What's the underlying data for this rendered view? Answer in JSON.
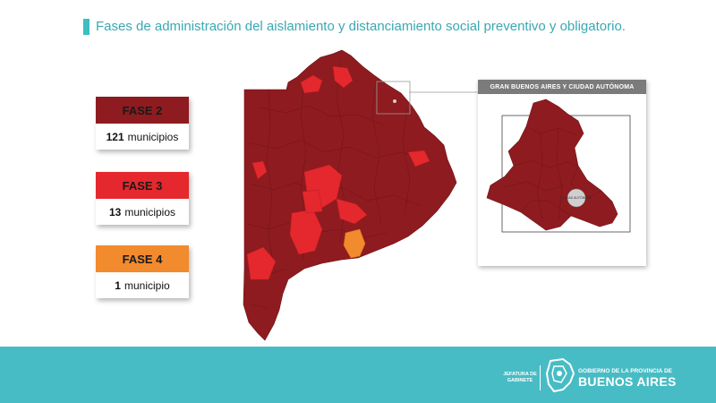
{
  "title": "Fases de administración del aislamiento y distanciamiento social preventivo y obligatorio.",
  "legend": [
    {
      "label": "FASE 2",
      "count": "121",
      "unit": "municipios",
      "color": "#8e1b1f"
    },
    {
      "label": "FASE 3",
      "count": "13",
      "unit": "municipios",
      "color": "#e5282d"
    },
    {
      "label": "FASE 4",
      "count": "1",
      "unit": "municipio",
      "color": "#f28a2e"
    }
  ],
  "inset": {
    "title": "GRAN BUENOS AIRES Y CIUDAD AUTÓNOMA",
    "caba_label": "CIUDAD AUTÓNOMA"
  },
  "footer": {
    "jefatura": "JEFATURA DE GABINETE",
    "gov_line1": "GOBIERNO DE LA PROVINCIA DE",
    "gov_line2": "BUENOS AIRES"
  },
  "colors": {
    "accent": "#47bcc5",
    "fase2": "#8e1b1f",
    "fase3": "#e5282d",
    "fase4": "#f28a2e"
  }
}
